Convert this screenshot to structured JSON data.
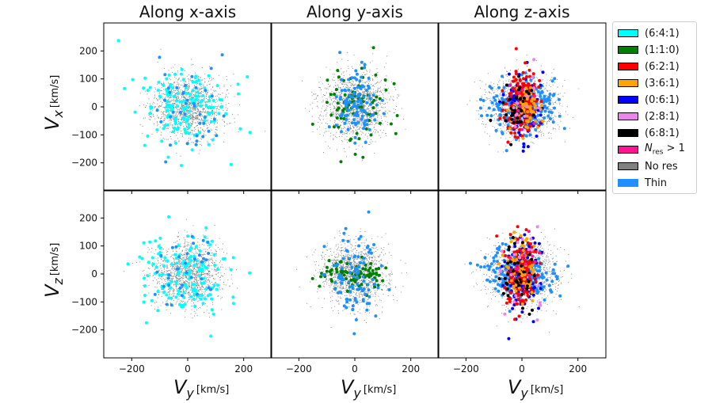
{
  "chart_data": {
    "type": "scatter",
    "column_titles": [
      "Along x-axis",
      "Along y-axis",
      "Along z-axis"
    ],
    "row_ylabels": [
      {
        "main": "V",
        "sub": "x",
        "unit": "[km/s]"
      },
      {
        "main": "V",
        "sub": "z",
        "unit": "[km/s]"
      }
    ],
    "xlabel": {
      "main": "V",
      "sub": "y",
      "unit": "[km/s]"
    },
    "xlim": [
      -300,
      300
    ],
    "ylim": [
      -300,
      300
    ],
    "xticks": [
      -200,
      0,
      200
    ],
    "yticks": [
      -200,
      -100,
      0,
      100,
      200
    ],
    "xtick_labels": [
      "−200",
      "0",
      "200"
    ],
    "ytick_labels": [
      "−200",
      "−100",
      "0",
      "100",
      "200"
    ],
    "legend": [
      {
        "label": "(6:4:1)",
        "color": "#00ffff"
      },
      {
        "label": "(1:1:0)",
        "color": "#008000"
      },
      {
        "label": "(6:2:1)",
        "color": "#ff0000"
      },
      {
        "label": "(3:6:1)",
        "color": "#ffa500"
      },
      {
        "label": "(0:6:1)",
        "color": "#0000ff"
      },
      {
        "label": "(2:8:1)",
        "color": "#ee82ee"
      },
      {
        "label": "(6:8:1)",
        "color": "#000000"
      },
      {
        "label": "N",
        "sub": "res",
        "suffix": " > 1",
        "color": "#ff1493"
      },
      {
        "label": "No res",
        "color": "#808080"
      },
      {
        "label": "Thin",
        "color": "#1e90ff"
      }
    ],
    "panels": [
      {
        "row": 0,
        "col": 0,
        "seed": 11,
        "groups": [
          {
            "name": "No res",
            "color": "#808080",
            "n": 1400,
            "sx": 60,
            "sy": 55,
            "mx": 0,
            "my": 0,
            "r": 0.55
          },
          {
            "name": "(6:4:1)",
            "color": "#00ffff",
            "n": 150,
            "sx": 80,
            "sy": 70,
            "mx": 0,
            "my": 0,
            "r": 2.0
          },
          {
            "name": "Thin",
            "color": "#1e90ff",
            "n": 40,
            "sx": 70,
            "sy": 70,
            "mx": 0,
            "my": 0,
            "r": 2.0
          }
        ]
      },
      {
        "row": 0,
        "col": 1,
        "seed": 23,
        "groups": [
          {
            "name": "No res",
            "color": "#808080",
            "n": 1400,
            "sx": 60,
            "sy": 60,
            "mx": 0,
            "my": 0,
            "r": 0.55
          },
          {
            "name": "(1:1:0)",
            "color": "#008000",
            "n": 90,
            "sx": 55,
            "sy": 65,
            "mx": 0,
            "my": 0,
            "r": 2.0
          },
          {
            "name": "Thin",
            "color": "#1e90ff",
            "n": 110,
            "sx": 40,
            "sy": 55,
            "mx": 0,
            "my": 10,
            "r": 2.0
          }
        ]
      },
      {
        "row": 0,
        "col": 2,
        "seed": 37,
        "groups": [
          {
            "name": "No res",
            "color": "#808080",
            "n": 1400,
            "sx": 60,
            "sy": 55,
            "mx": 0,
            "my": 0,
            "r": 0.55
          },
          {
            "name": "Thin",
            "color": "#1e90ff",
            "n": 220,
            "sx": 60,
            "sy": 45,
            "mx": 0,
            "my": 0,
            "r": 2.0
          },
          {
            "name": "(0:6:1)",
            "color": "#0000ff",
            "n": 130,
            "sx": 30,
            "sy": 55,
            "mx": 0,
            "my": 0,
            "r": 2.0
          },
          {
            "name": "(6:2:1)",
            "color": "#ff0000",
            "n": 170,
            "sx": 28,
            "sy": 60,
            "mx": 0,
            "my": 0,
            "r": 2.0
          },
          {
            "name": "(3:6:1)",
            "color": "#ffa500",
            "n": 60,
            "sx": 25,
            "sy": 40,
            "mx": 10,
            "my": 0,
            "r": 2.0
          },
          {
            "name": "(6:8:1)",
            "color": "#000000",
            "n": 40,
            "sx": 25,
            "sy": 55,
            "mx": -20,
            "my": 0,
            "r": 2.0
          },
          {
            "name": "(2:8:1)",
            "color": "#ee82ee",
            "n": 12,
            "sx": 30,
            "sy": 60,
            "mx": 0,
            "my": 0,
            "r": 2.0
          },
          {
            "name": "N res > 1",
            "color": "#ff1493",
            "n": 8,
            "sx": 25,
            "sy": 55,
            "mx": 0,
            "my": 0,
            "r": 2.0
          }
        ]
      },
      {
        "row": 1,
        "col": 0,
        "seed": 41,
        "groups": [
          {
            "name": "No res",
            "color": "#808080",
            "n": 1400,
            "sx": 60,
            "sy": 55,
            "mx": 0,
            "my": 0,
            "r": 0.55
          },
          {
            "name": "(6:4:1)",
            "color": "#00ffff",
            "n": 150,
            "sx": 80,
            "sy": 75,
            "mx": 0,
            "my": 0,
            "r": 2.0
          },
          {
            "name": "Thin",
            "color": "#1e90ff",
            "n": 35,
            "sx": 70,
            "sy": 65,
            "mx": 0,
            "my": 0,
            "r": 2.0
          }
        ]
      },
      {
        "row": 1,
        "col": 1,
        "seed": 53,
        "groups": [
          {
            "name": "No res",
            "color": "#808080",
            "n": 1400,
            "sx": 60,
            "sy": 55,
            "mx": 0,
            "my": 0,
            "r": 0.55
          },
          {
            "name": "(1:1:0)",
            "color": "#008000",
            "n": 90,
            "sx": 55,
            "sy": 25,
            "mx": 0,
            "my": 0,
            "r": 2.0
          },
          {
            "name": "Thin",
            "color": "#1e90ff",
            "n": 100,
            "sx": 45,
            "sy": 70,
            "mx": 0,
            "my": -10,
            "r": 2.0
          }
        ]
      },
      {
        "row": 1,
        "col": 2,
        "seed": 67,
        "groups": [
          {
            "name": "No res",
            "color": "#808080",
            "n": 1400,
            "sx": 60,
            "sy": 55,
            "mx": 0,
            "my": 0,
            "r": 0.55
          },
          {
            "name": "Thin",
            "color": "#1e90ff",
            "n": 230,
            "sx": 60,
            "sy": 45,
            "mx": 0,
            "my": 0,
            "r": 2.0
          },
          {
            "name": "(0:6:1)",
            "color": "#0000ff",
            "n": 120,
            "sx": 30,
            "sy": 70,
            "mx": 0,
            "my": 0,
            "r": 2.0
          },
          {
            "name": "(6:2:1)",
            "color": "#ff0000",
            "n": 150,
            "sx": 28,
            "sy": 60,
            "mx": 0,
            "my": 0,
            "r": 2.0
          },
          {
            "name": "(3:6:1)",
            "color": "#ffa500",
            "n": 70,
            "sx": 25,
            "sy": 60,
            "mx": 0,
            "my": 0,
            "r": 2.0
          },
          {
            "name": "(6:8:1)",
            "color": "#000000",
            "n": 40,
            "sx": 30,
            "sy": 60,
            "mx": -20,
            "my": 0,
            "r": 2.0
          },
          {
            "name": "(2:8:1)",
            "color": "#ee82ee",
            "n": 20,
            "sx": 35,
            "sy": 80,
            "mx": 0,
            "my": 10,
            "r": 2.0
          },
          {
            "name": "N res > 1",
            "color": "#ff1493",
            "n": 10,
            "sx": 25,
            "sy": 60,
            "mx": 0,
            "my": 0,
            "r": 2.0
          }
        ]
      }
    ]
  }
}
